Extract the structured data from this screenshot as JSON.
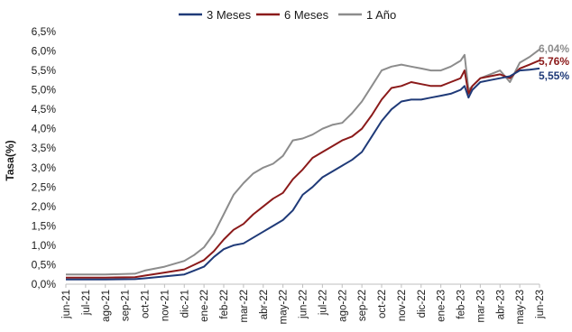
{
  "chart_data": {
    "type": "line",
    "title": "",
    "xlabel": "",
    "ylabel": "Tasa(%)",
    "ylim": [
      0,
      6.5
    ],
    "yticks": [
      "0,0%",
      "0,5%",
      "1,0%",
      "1,5%",
      "2,0%",
      "2,5%",
      "3,0%",
      "3,5%",
      "4,0%",
      "4,5%",
      "5,0%",
      "5,5%",
      "6,0%",
      "6,5%"
    ],
    "xticks": [
      "jun-21",
      "jul-21",
      "ago-21",
      "sep-21",
      "oct-21",
      "nov-21",
      "dic-21",
      "ene-22",
      "feb-22",
      "mar-22",
      "abr-22",
      "may-22",
      "jun-22",
      "jul-22",
      "ago-22",
      "sep-22",
      "oct-22",
      "nov-22",
      "dic-22",
      "ene-23",
      "feb-23",
      "mar-23",
      "abr-23",
      "may-23",
      "jun-23"
    ],
    "grid": false,
    "legend": "top",
    "x_unit": "months from jun-21",
    "series": [
      {
        "name": "3 Meses",
        "color": "#1f3a78",
        "end_label": "5,55%",
        "points": [
          [
            0,
            0.12
          ],
          [
            2,
            0.12
          ],
          [
            3.5,
            0.13
          ],
          [
            4,
            0.15
          ],
          [
            5,
            0.2
          ],
          [
            6,
            0.25
          ],
          [
            6.5,
            0.35
          ],
          [
            7,
            0.45
          ],
          [
            7.5,
            0.7
          ],
          [
            8,
            0.9
          ],
          [
            8.5,
            1.0
          ],
          [
            9,
            1.05
          ],
          [
            9.5,
            1.2
          ],
          [
            10,
            1.35
          ],
          [
            10.5,
            1.5
          ],
          [
            11,
            1.65
          ],
          [
            11.5,
            1.9
          ],
          [
            12,
            2.3
          ],
          [
            12.5,
            2.5
          ],
          [
            13,
            2.75
          ],
          [
            13.5,
            2.9
          ],
          [
            14,
            3.05
          ],
          [
            14.5,
            3.2
          ],
          [
            15,
            3.4
          ],
          [
            15.5,
            3.8
          ],
          [
            16,
            4.2
          ],
          [
            16.5,
            4.5
          ],
          [
            17,
            4.7
          ],
          [
            17.5,
            4.75
          ],
          [
            18,
            4.75
          ],
          [
            18.5,
            4.8
          ],
          [
            19,
            4.85
          ],
          [
            19.5,
            4.9
          ],
          [
            20,
            5.0
          ],
          [
            20.2,
            5.1
          ],
          [
            20.4,
            4.8
          ],
          [
            20.6,
            5.0
          ],
          [
            21,
            5.2
          ],
          [
            21.5,
            5.25
          ],
          [
            22,
            5.3
          ],
          [
            22.5,
            5.35
          ],
          [
            23,
            5.5
          ],
          [
            23.5,
            5.52
          ],
          [
            24,
            5.55
          ]
        ]
      },
      {
        "name": "6 Meses",
        "color": "#8b1a1a",
        "end_label": "5,76%",
        "points": [
          [
            0,
            0.17
          ],
          [
            2,
            0.17
          ],
          [
            3.5,
            0.18
          ],
          [
            4,
            0.22
          ],
          [
            5,
            0.3
          ],
          [
            6,
            0.38
          ],
          [
            6.5,
            0.5
          ],
          [
            7,
            0.62
          ],
          [
            7.5,
            0.85
          ],
          [
            8,
            1.15
          ],
          [
            8.5,
            1.4
          ],
          [
            9,
            1.55
          ],
          [
            9.5,
            1.8
          ],
          [
            10,
            2.0
          ],
          [
            10.5,
            2.2
          ],
          [
            11,
            2.35
          ],
          [
            11.5,
            2.7
          ],
          [
            12,
            2.95
          ],
          [
            12.5,
            3.25
          ],
          [
            13,
            3.4
          ],
          [
            13.5,
            3.55
          ],
          [
            14,
            3.7
          ],
          [
            14.5,
            3.8
          ],
          [
            15,
            4.0
          ],
          [
            15.5,
            4.35
          ],
          [
            16,
            4.75
          ],
          [
            16.5,
            5.05
          ],
          [
            17,
            5.1
          ],
          [
            17.5,
            5.2
          ],
          [
            18,
            5.15
          ],
          [
            18.5,
            5.1
          ],
          [
            19,
            5.1
          ],
          [
            19.5,
            5.2
          ],
          [
            20,
            5.3
          ],
          [
            20.2,
            5.5
          ],
          [
            20.4,
            4.9
          ],
          [
            20.6,
            5.1
          ],
          [
            21,
            5.3
          ],
          [
            21.5,
            5.35
          ],
          [
            22,
            5.4
          ],
          [
            22.5,
            5.3
          ],
          [
            23,
            5.55
          ],
          [
            23.5,
            5.65
          ],
          [
            24,
            5.76
          ]
        ]
      },
      {
        "name": "1 Año",
        "color": "#8c8c8c",
        "end_label": "6,04%",
        "points": [
          [
            0,
            0.25
          ],
          [
            2,
            0.25
          ],
          [
            3.5,
            0.27
          ],
          [
            4,
            0.35
          ],
          [
            5,
            0.45
          ],
          [
            6,
            0.6
          ],
          [
            6.5,
            0.75
          ],
          [
            7,
            0.95
          ],
          [
            7.5,
            1.3
          ],
          [
            8,
            1.8
          ],
          [
            8.5,
            2.3
          ],
          [
            9,
            2.6
          ],
          [
            9.5,
            2.85
          ],
          [
            10,
            3.0
          ],
          [
            10.5,
            3.1
          ],
          [
            11,
            3.3
          ],
          [
            11.5,
            3.7
          ],
          [
            12,
            3.75
          ],
          [
            12.5,
            3.85
          ],
          [
            13,
            4.0
          ],
          [
            13.5,
            4.1
          ],
          [
            14,
            4.15
          ],
          [
            14.5,
            4.4
          ],
          [
            15,
            4.7
          ],
          [
            15.5,
            5.1
          ],
          [
            16,
            5.5
          ],
          [
            16.5,
            5.6
          ],
          [
            17,
            5.65
          ],
          [
            17.5,
            5.6
          ],
          [
            18,
            5.55
          ],
          [
            18.5,
            5.5
          ],
          [
            19,
            5.5
          ],
          [
            19.5,
            5.6
          ],
          [
            20,
            5.75
          ],
          [
            20.2,
            5.9
          ],
          [
            20.4,
            5.0
          ],
          [
            20.6,
            5.1
          ],
          [
            21,
            5.3
          ],
          [
            21.5,
            5.4
          ],
          [
            22,
            5.5
          ],
          [
            22.5,
            5.2
          ],
          [
            23,
            5.7
          ],
          [
            23.5,
            5.85
          ],
          [
            24,
            6.04
          ]
        ]
      }
    ]
  }
}
